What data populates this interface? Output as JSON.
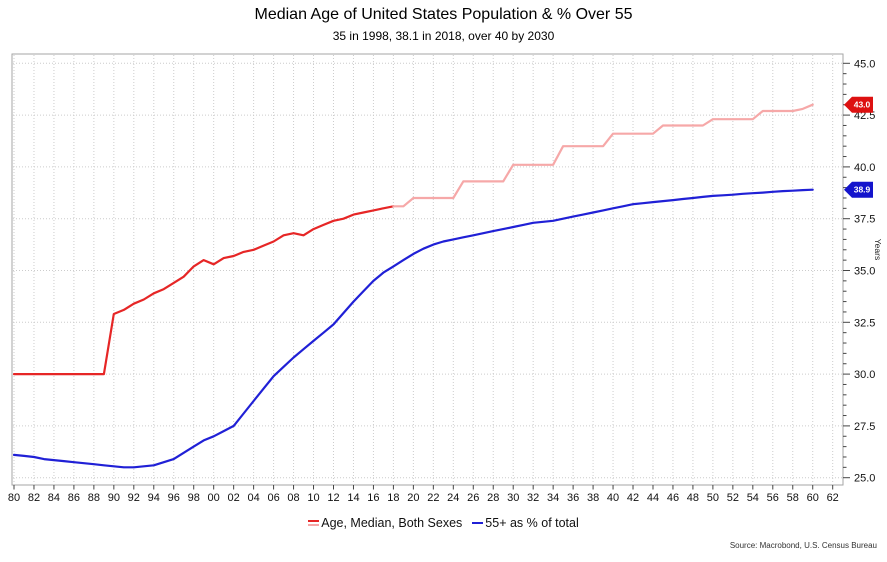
{
  "source": "Source: Macrobond, U.S. Census Bureau",
  "axis": {
    "y_title": "Years",
    "y_ticks": [
      "45.0",
      "42.5",
      "40.0",
      "37.5",
      "35.0",
      "32.5",
      "30.0",
      "27.5",
      "25.0"
    ],
    "y_tick_values": [
      45.0,
      42.5,
      40.0,
      37.5,
      35.0,
      32.5,
      30.0,
      27.5,
      25.0
    ],
    "x_ticks": [
      "80",
      "82",
      "84",
      "86",
      "88",
      "90",
      "92",
      "94",
      "96",
      "98",
      "00",
      "02",
      "04",
      "06",
      "08",
      "10",
      "12",
      "14",
      "16",
      "18",
      "20",
      "22",
      "24",
      "26",
      "28",
      "30",
      "32",
      "34",
      "36",
      "38",
      "40",
      "42",
      "44",
      "46",
      "48",
      "50",
      "52",
      "54",
      "56",
      "58",
      "60",
      "62"
    ],
    "x_tick_years": [
      1980,
      1982,
      1984,
      1986,
      1988,
      1990,
      1992,
      1994,
      1996,
      1998,
      2000,
      2002,
      2004,
      2006,
      2008,
      2010,
      2012,
      2014,
      2016,
      2018,
      2020,
      2022,
      2024,
      2026,
      2028,
      2030,
      2032,
      2034,
      2036,
      2038,
      2040,
      2042,
      2044,
      2046,
      2048,
      2050,
      2052,
      2054,
      2056,
      2058,
      2060,
      2062
    ]
  },
  "end_labels": [
    {
      "text": "43.0",
      "value": 43.0,
      "color": "#dd1111"
    },
    {
      "text": "38.9",
      "value": 38.9,
      "color": "#1414cc"
    }
  ],
  "legend": [
    {
      "label": "Age, Median, Both Sexes",
      "colors": [
        "#e62626",
        "#f6a8a8"
      ]
    },
    {
      "label": "55+ as % of total",
      "colors": [
        "#2020d6"
      ]
    }
  ],
  "colors": {
    "median_actual": "#e62626",
    "median_forecast": "#f6a8a8",
    "pct55": "#2020d6",
    "grid": "#cccccc",
    "border": "#a6a6a6",
    "tick": "#444444"
  },
  "chart_data": {
    "type": "line",
    "title": "Median Age of United States Population & % Over 55",
    "subtitle": "35 in 1998, 38.1 in 2018, over 40 by 2030",
    "xlim": [
      1980,
      2062
    ],
    "ylim": [
      25.0,
      45.0
    ],
    "grid": true,
    "legend_position": "bottom",
    "series": [
      {
        "name": "Age, Median, Both Sexes (actual)",
        "color": "#e62626",
        "start_year": 1980,
        "values": [
          30.0,
          30.0,
          30.0,
          30.0,
          30.0,
          30.0,
          30.0,
          30.0,
          30.0,
          30.0,
          32.9,
          33.1,
          33.4,
          33.6,
          33.9,
          34.1,
          34.4,
          34.7,
          35.2,
          35.5,
          35.3,
          35.6,
          35.7,
          35.9,
          36.0,
          36.2,
          36.4,
          36.7,
          36.8,
          36.7,
          37.0,
          37.2,
          37.4,
          37.5,
          37.7,
          37.8,
          37.9,
          38.0,
          38.1
        ]
      },
      {
        "name": "Age, Median, Both Sexes (forecast)",
        "color": "#f6a8a8",
        "start_year": 2018,
        "values": [
          38.1,
          38.1,
          38.5,
          38.5,
          38.5,
          38.5,
          38.5,
          39.3,
          39.3,
          39.3,
          39.3,
          39.3,
          40.1,
          40.1,
          40.1,
          40.1,
          40.1,
          41.0,
          41.0,
          41.0,
          41.0,
          41.0,
          41.6,
          41.6,
          41.6,
          41.6,
          41.6,
          42.0,
          42.0,
          42.0,
          42.0,
          42.0,
          42.3,
          42.3,
          42.3,
          42.3,
          42.3,
          42.7,
          42.7,
          42.7,
          42.7,
          42.8,
          43.0
        ]
      },
      {
        "name": "55+ as % of total",
        "color": "#2020d6",
        "start_year": 1980,
        "values": [
          26.1,
          26.05,
          26.0,
          25.9,
          25.85,
          25.8,
          25.75,
          25.7,
          25.65,
          25.6,
          25.55,
          25.5,
          25.5,
          25.55,
          25.6,
          25.75,
          25.9,
          26.2,
          26.5,
          26.8,
          27.0,
          27.25,
          27.5,
          28.1,
          28.7,
          29.3,
          29.9,
          30.35,
          30.8,
          31.2,
          31.6,
          32.0,
          32.4,
          32.95,
          33.5,
          34.0,
          34.5,
          34.9,
          35.2,
          35.5,
          35.8,
          36.05,
          36.25,
          36.4,
          36.5,
          36.6,
          36.7,
          36.8,
          36.9,
          37.0,
          37.1,
          37.2,
          37.3,
          37.35,
          37.4,
          37.5,
          37.6,
          37.7,
          37.8,
          37.9,
          38.0,
          38.1,
          38.2,
          38.25,
          38.3,
          38.35,
          38.4,
          38.45,
          38.5,
          38.55,
          38.6,
          38.63,
          38.66,
          38.7,
          38.73,
          38.76,
          38.8,
          38.83,
          38.85,
          38.88,
          38.9
        ]
      }
    ]
  }
}
